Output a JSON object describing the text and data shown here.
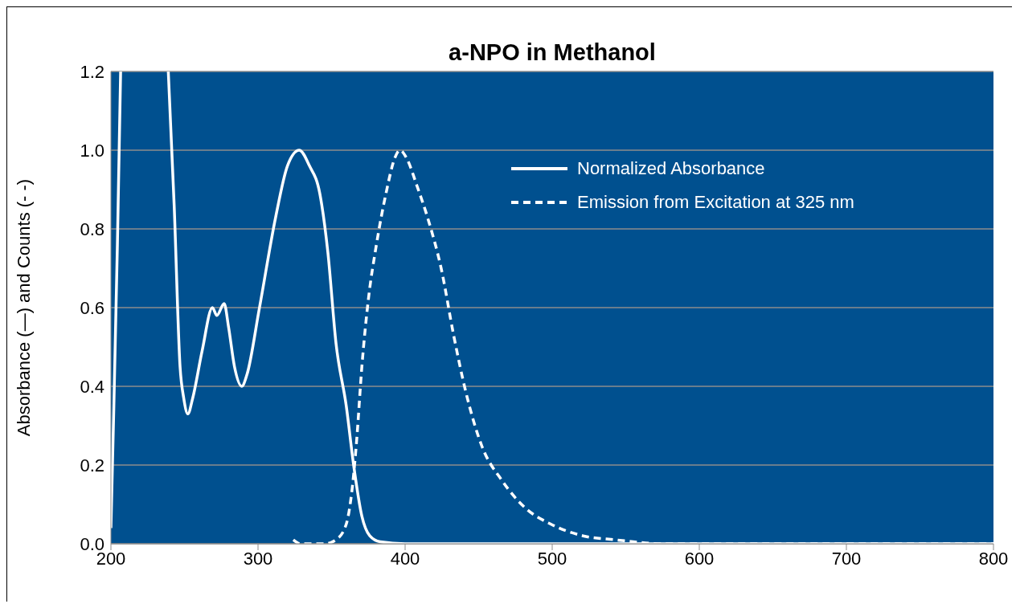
{
  "chart_data": {
    "type": "line",
    "title": "a-NPO in Methanol",
    "ylabel": "Absorbance (—) and Counts (- -)",
    "xlim": [
      200,
      800
    ],
    "xticks": [
      200,
      300,
      400,
      500,
      600,
      700,
      800
    ],
    "ylim": [
      0,
      1.2
    ],
    "yticks": [
      {
        "value": 0,
        "label": "0.0"
      },
      {
        "value": 0.2,
        "label": "0.2"
      },
      {
        "value": 0.4,
        "label": "0.4"
      },
      {
        "value": 0.6,
        "label": "0.6"
      },
      {
        "value": 0.8,
        "label": "0.8"
      },
      {
        "value": 1,
        "label": "1.0"
      },
      {
        "value": 1.2,
        "label": "1.2"
      }
    ],
    "grid": "y",
    "legend": "top right",
    "marker": "none",
    "series": [
      {
        "name": "Normalized Absorbance",
        "color": "#ffffff",
        "line_style": "solid",
        "x": [
          200,
          202,
          204.4,
          206.6,
          222,
          239,
          243,
          247,
          249.5,
          252.3,
          255.6,
          262,
          269,
          272,
          277,
          280,
          284,
          289,
          292.5,
          301,
          312,
          320,
          328,
          335,
          342,
          347.5,
          353,
          360,
          365,
          370.6,
          376,
          383,
          400,
          500,
          600,
          700,
          800
        ],
        "values": [
          0.04,
          0.35,
          0.76,
          1.2,
          null,
          1.2,
          0.86,
          0.45,
          0.37,
          0.33,
          0.37,
          0.49,
          0.6,
          0.58,
          0.61,
          0.55,
          0.45,
          0.4,
          0.43,
          0.6,
          0.83,
          0.96,
          1.0,
          0.96,
          0.89,
          0.74,
          0.51,
          0.35,
          0.2,
          0.07,
          0.02,
          0.005,
          0,
          0,
          0,
          0,
          0
        ]
      },
      {
        "name": "Emission from Excitation at 325 nm",
        "color": "#ffffff",
        "line_style": "dashed",
        "x": [
          324,
          329,
          345,
          353,
          360,
          364,
          367,
          370.6,
          375,
          380.5,
          387,
          393,
          396.5,
          401,
          408,
          416,
          424.5,
          433,
          441,
          452,
          466,
          482,
          499,
          521,
          543,
          576,
          650,
          800
        ],
        "values": [
          0.01,
          0,
          0,
          0.01,
          0.05,
          0.14,
          0.26,
          0.45,
          0.62,
          0.76,
          0.89,
          0.98,
          1.0,
          0.98,
          0.91,
          0.82,
          0.7,
          0.53,
          0.39,
          0.25,
          0.16,
          0.09,
          0.05,
          0.02,
          0.01,
          0,
          0,
          0
        ]
      }
    ]
  }
}
